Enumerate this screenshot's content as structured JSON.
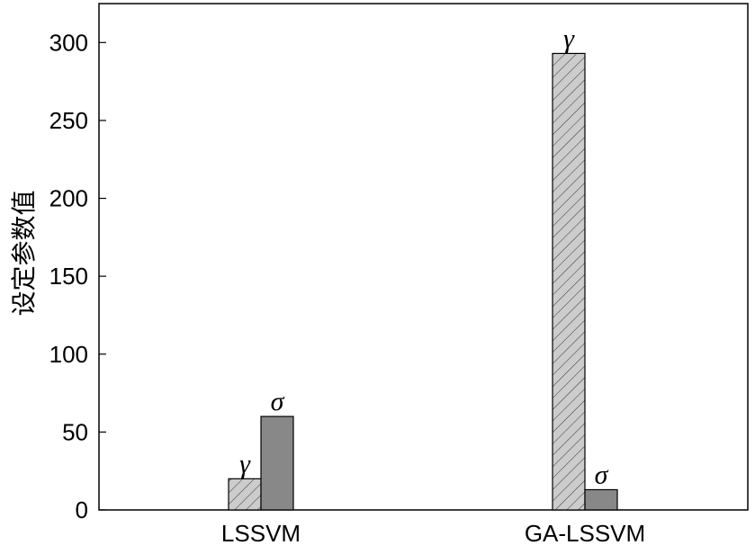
{
  "chart_data": {
    "type": "bar",
    "title": "",
    "xlabel": "",
    "ylabel": "设定参数值",
    "categories": [
      "LSSVM",
      "GA-LSSVM"
    ],
    "series": [
      {
        "name": "γ",
        "values": [
          20,
          293
        ],
        "color": "#cccccc",
        "pattern": "diagonal-hatch"
      },
      {
        "name": "σ",
        "values": [
          60,
          13
        ],
        "color": "#888888",
        "pattern": "solid"
      }
    ],
    "ylim": [
      0,
      325
    ],
    "yticks": [
      0,
      50,
      100,
      150,
      200,
      250,
      300
    ],
    "grid": false,
    "legend": "none",
    "bar_labels": "series-name-above-bar"
  }
}
